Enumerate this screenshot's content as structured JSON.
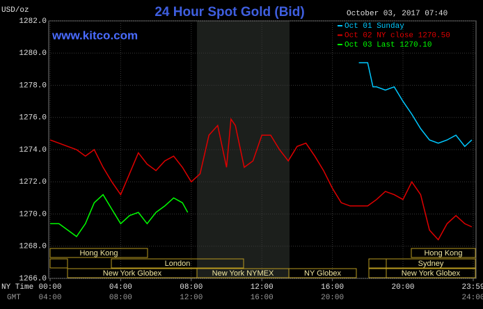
{
  "chart_data": {
    "type": "line",
    "title": "24 Hour Spot Gold (Bid)",
    "y_label": "USD/oz",
    "timestamp": "October 03, 2017 07:40",
    "watermark": "www.kitco.com",
    "x_label": "NY Time",
    "x2_label": "GMT",
    "xlim": [
      0,
      23.983
    ],
    "ylim": [
      1266,
      1282
    ],
    "grid": true,
    "legend": "top-right",
    "xticks": [
      {
        "value": 0,
        "label": "00:00"
      },
      {
        "value": 4,
        "label": "04:00"
      },
      {
        "value": 8,
        "label": "08:00"
      },
      {
        "value": 12,
        "label": "12:00"
      },
      {
        "value": 16,
        "label": "16:00"
      },
      {
        "value": 20,
        "label": "20:00"
      },
      {
        "value": 23.983,
        "label": "23:59"
      }
    ],
    "x2ticks": [
      {
        "value": 0,
        "label": "04:00"
      },
      {
        "value": 4,
        "label": "08:00"
      },
      {
        "value": 8,
        "label": "12:00"
      },
      {
        "value": 12,
        "label": "16:00"
      },
      {
        "value": 16,
        "label": "20:00"
      },
      {
        "value": 23.983,
        "label": "24:00"
      }
    ],
    "yticks": [
      {
        "value": 1266,
        "label": "1266.0"
      },
      {
        "value": 1268,
        "label": "1268.0"
      },
      {
        "value": 1270,
        "label": "1270.0"
      },
      {
        "value": 1272,
        "label": "1272.0"
      },
      {
        "value": 1274,
        "label": "1274.0"
      },
      {
        "value": 1276,
        "label": "1276.0"
      },
      {
        "value": 1278,
        "label": "1278.0"
      },
      {
        "value": 1280,
        "label": "1280.0"
      },
      {
        "value": 1282,
        "label": "1282.0"
      }
    ],
    "sessions": [
      "Hong Kong",
      "Hong Kong",
      "London",
      "Sydney",
      "New York Globex",
      "New York NYMEX",
      "NY Globex",
      "New York Globex"
    ],
    "series": [
      {
        "name": "Oct 01 Sunday",
        "color": "#00c8ff",
        "x": [
          17.5,
          18,
          18.3,
          18.5,
          19,
          19.5,
          20,
          20.5,
          21,
          21.5,
          22,
          22.5,
          23,
          23.5,
          23.9
        ],
        "values": [
          1279.4,
          1279.4,
          1277.9,
          1277.9,
          1277.7,
          1277.9,
          1277.0,
          1276.2,
          1275.3,
          1274.6,
          1274.4,
          1274.6,
          1274.9,
          1274.2,
          1274.6
        ]
      },
      {
        "name": "Oct 02 NY close 1270.50",
        "color": "#e00000",
        "x": [
          0,
          0.5,
          1,
          1.5,
          2,
          2.5,
          3,
          3.5,
          4,
          4.5,
          5,
          5.5,
          6,
          6.5,
          7,
          7.5,
          8,
          8.5,
          9,
          9.5,
          10,
          10.25,
          10.5,
          11,
          11.5,
          12,
          12.5,
          13,
          13.5,
          14,
          14.5,
          15,
          15.5,
          16,
          16.5,
          17,
          17.5,
          18,
          18.5,
          19,
          19.5,
          20,
          20.5,
          21,
          21.5,
          22,
          22.5,
          23,
          23.5,
          23.9
        ],
        "values": [
          1274.6,
          1274.4,
          1274.2,
          1274.0,
          1273.6,
          1274.0,
          1272.9,
          1272.0,
          1271.2,
          1272.5,
          1273.8,
          1273.1,
          1272.7,
          1273.3,
          1273.6,
          1272.9,
          1272.0,
          1272.5,
          1274.9,
          1275.5,
          1272.9,
          1275.9,
          1275.5,
          1272.9,
          1273.3,
          1274.9,
          1274.9,
          1274.0,
          1273.3,
          1274.2,
          1274.4,
          1273.6,
          1272.7,
          1271.6,
          1270.7,
          1270.5,
          1270.5,
          1270.5,
          1270.9,
          1271.4,
          1271.2,
          1270.9,
          1272.0,
          1271.2,
          1269.0,
          1268.4,
          1269.4,
          1269.9,
          1269.4,
          1269.2
        ]
      },
      {
        "name": "Oct 03 Last 1270.10",
        "color": "#00ff00",
        "x": [
          0,
          0.5,
          1,
          1.5,
          2,
          2.5,
          3,
          3.5,
          4,
          4.5,
          5,
          5.5,
          6,
          6.5,
          7,
          7.5,
          7.8
        ],
        "values": [
          1269.4,
          1269.4,
          1269.0,
          1268.6,
          1269.4,
          1270.7,
          1271.2,
          1270.3,
          1269.4,
          1269.9,
          1270.1,
          1269.4,
          1270.1,
          1270.5,
          1271.0,
          1270.7,
          1270.1
        ]
      }
    ]
  }
}
